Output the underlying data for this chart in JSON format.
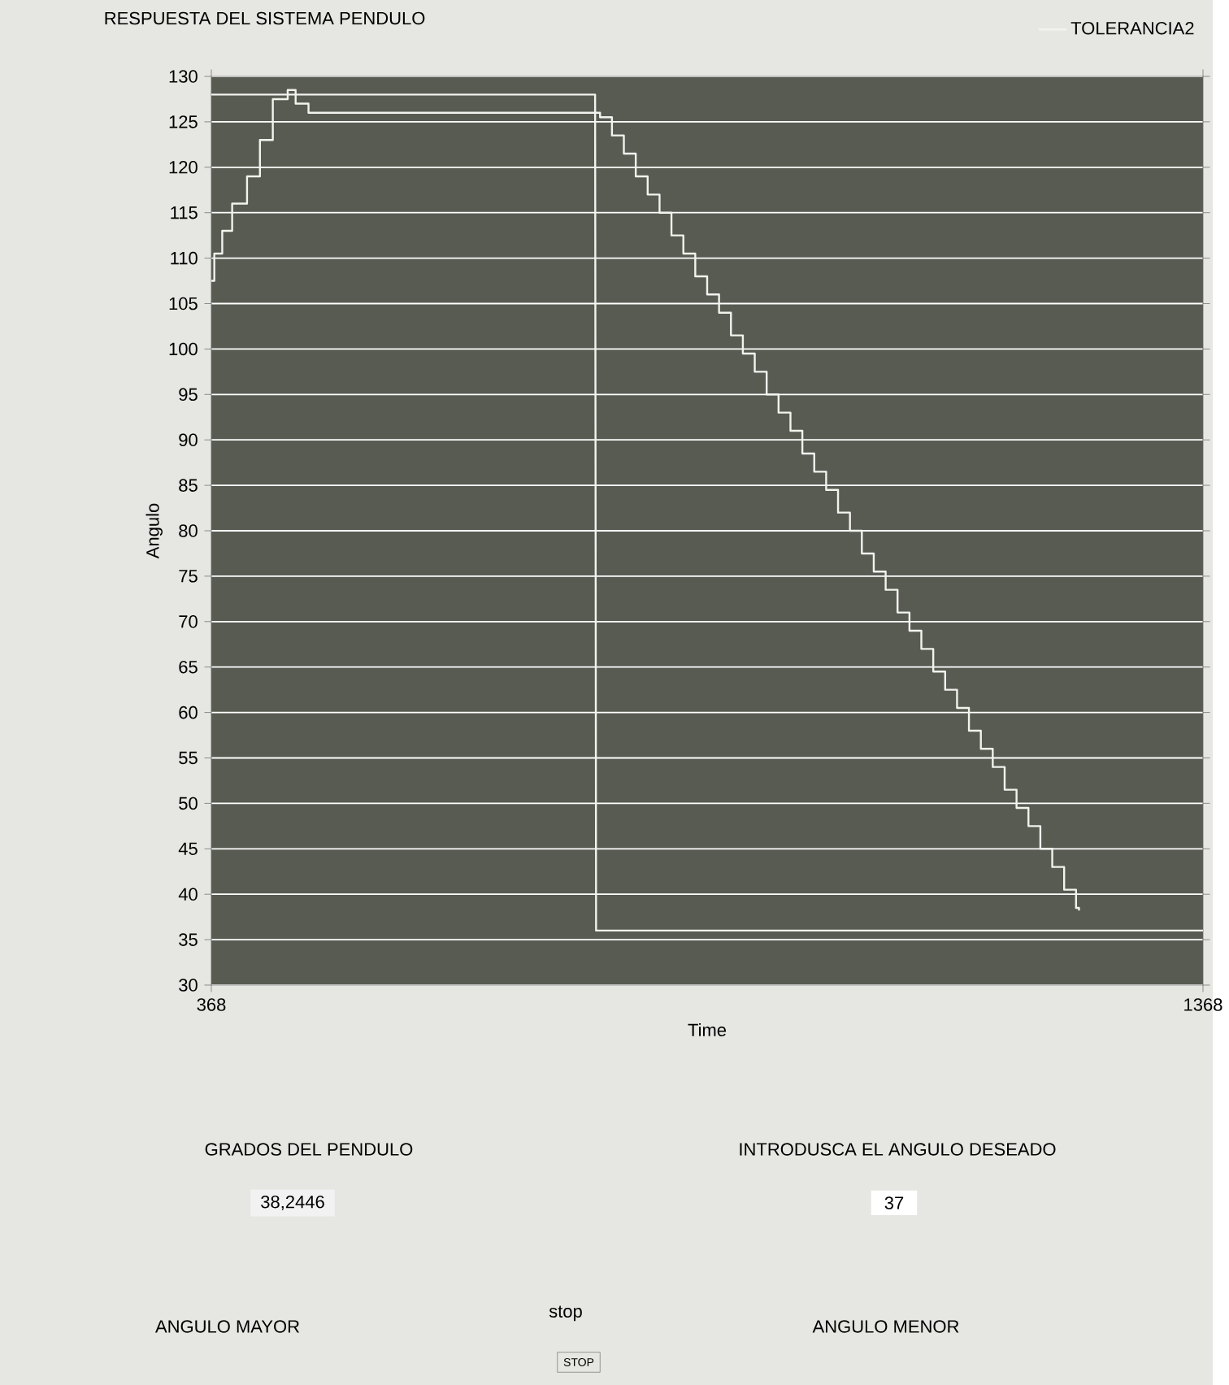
{
  "chart_data": {
    "type": "step",
    "title": "RESPUESTA DEL SISTEMA PENDULO",
    "xlabel": "Time",
    "ylabel": "Angulo",
    "xlim": [
      368,
      1368
    ],
    "xticks": [
      368,
      1368
    ],
    "ylim": [
      30,
      130
    ],
    "yticks": [
      30,
      35,
      40,
      45,
      50,
      55,
      60,
      65,
      70,
      75,
      80,
      85,
      90,
      95,
      100,
      105,
      110,
      115,
      120,
      125,
      130
    ],
    "grid": "y",
    "legend": "top right",
    "marker": "none",
    "line_style": "solid",
    "series": [
      {
        "name": "TOLERANCIA2",
        "color": "#f2f2ee",
        "x": [
          368,
          371,
          379,
          389,
          404,
          417,
          430,
          445,
          453,
          466,
          760,
          772,
          784,
          796,
          808,
          820,
          832,
          844,
          856,
          868,
          880,
          892,
          904,
          916,
          928,
          940,
          952,
          964,
          976,
          988,
          1000,
          1012,
          1024,
          1036,
          1048,
          1060,
          1072,
          1084,
          1096,
          1108,
          1120,
          1132,
          1144,
          1156,
          1168,
          1180,
          1192,
          1204,
          1216,
          1228,
          1240,
          1243
        ],
        "values": [
          107.5,
          110.5,
          113,
          116,
          119,
          123,
          127.5,
          128.5,
          127,
          126,
          125.5,
          123.5,
          121.5,
          119,
          117,
          115,
          112.5,
          110.5,
          108,
          106,
          104,
          101.5,
          99.5,
          97.5,
          95,
          93,
          91,
          88.5,
          86.5,
          84.5,
          82,
          80,
          77.5,
          75.5,
          73.5,
          71,
          69,
          67,
          64.5,
          62.5,
          60.5,
          58,
          56,
          54,
          51.5,
          49.5,
          47.5,
          45,
          43,
          40.5,
          38.5,
          38.2
        ]
      },
      {
        "type": "line",
        "color": "#f2f2ee",
        "x": [
          368,
          755,
          756,
          1368
        ],
        "values": [
          128,
          128,
          36,
          36
        ]
      }
    ],
    "annotations": [
      "GRADOS DEL PENDULO",
      "38,2446",
      "INTRODUSCA EL ANGULO DESEADO",
      "37",
      "ANGULO MAYOR",
      "stop",
      "STOP",
      "ANGULO MENOR"
    ]
  }
}
